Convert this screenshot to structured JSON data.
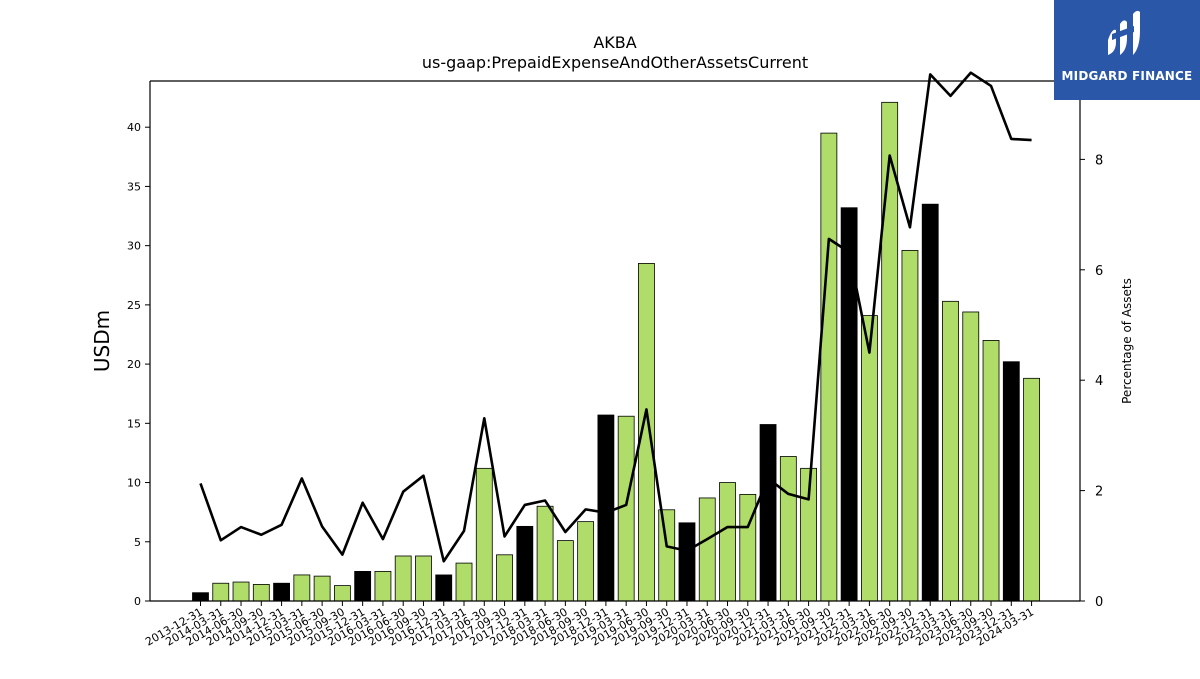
{
  "logo": {
    "text": "MIDGARD FINANCE",
    "background": "#2b57a8"
  },
  "chart_data": {
    "type": "bar",
    "title": "AKBA",
    "subtitle": "us-gaap:PrepaidExpenseAndOtherAssetsCurrent",
    "ylabel": "USDm",
    "y2label": "Percentage of Assets",
    "ylim": [
      0,
      43.9
    ],
    "y2lim": [
      0,
      9.42
    ],
    "yticks": [
      0,
      5,
      10,
      15,
      20,
      25,
      30,
      35,
      40
    ],
    "y2ticks": [
      0,
      2,
      4,
      6,
      8
    ],
    "grid": false,
    "colors": {
      "annual": "#000000",
      "quarterly": "#b0dc6a",
      "line": "#000000"
    },
    "categories": [
      "2013-12-31",
      "2014-03-31",
      "2014-06-30",
      "2014-09-30",
      "2014-12-31",
      "2015-03-31",
      "2015-06-30",
      "2015-09-30",
      "2015-12-31",
      "2016-03-31",
      "2016-06-30",
      "2016-09-30",
      "2016-12-31",
      "2017-03-31",
      "2017-06-30",
      "2017-09-30",
      "2017-12-31",
      "2018-03-31",
      "2018-06-30",
      "2018-09-30",
      "2018-12-31",
      "2019-03-31",
      "2019-06-30",
      "2019-09-30",
      "2019-12-31",
      "2020-03-31",
      "2020-06-30",
      "2020-09-30",
      "2020-12-31",
      "2021-03-31",
      "2021-06-30",
      "2021-09-30",
      "2021-12-31",
      "2022-03-31",
      "2022-06-30",
      "2022-09-30",
      "2022-12-31",
      "2023-03-31",
      "2023-06-30",
      "2023-09-30",
      "2023-12-31",
      "2024-03-31"
    ],
    "series": [
      {
        "type": "bar",
        "values": [
          0.7,
          1.5,
          1.6,
          1.4,
          1.5,
          2.2,
          2.1,
          1.3,
          2.5,
          2.5,
          3.8,
          3.8,
          2.2,
          3.2,
          11.2,
          3.9,
          6.3,
          8.0,
          5.1,
          6.7,
          15.7,
          15.6,
          28.5,
          7.7,
          6.6,
          8.7,
          10.0,
          9.0,
          14.9,
          12.2,
          11.2,
          39.5,
          33.2,
          24.1,
          42.1,
          29.6,
          33.5,
          25.3,
          24.4,
          22.0,
          20.2,
          18.8
        ],
        "annual": [
          true,
          false,
          false,
          false,
          true,
          false,
          false,
          false,
          true,
          false,
          false,
          false,
          true,
          false,
          false,
          false,
          true,
          false,
          false,
          false,
          true,
          false,
          false,
          false,
          true,
          false,
          false,
          false,
          true,
          false,
          false,
          false,
          true,
          false,
          false,
          false,
          true,
          false,
          false,
          false,
          true,
          false
        ]
      },
      {
        "type": "line",
        "axis": "right",
        "values": [
          2.13,
          1.1,
          1.34,
          1.2,
          1.38,
          2.22,
          1.35,
          0.84,
          1.78,
          1.12,
          1.98,
          2.27,
          0.72,
          1.27,
          3.31,
          1.17,
          1.74,
          1.82,
          1.25,
          1.66,
          1.6,
          1.74,
          3.47,
          0.99,
          0.91,
          1.12,
          1.34,
          1.34,
          2.22,
          1.94,
          1.84,
          6.56,
          6.32,
          4.5,
          8.07,
          6.77,
          9.54,
          9.15,
          9.57,
          9.33,
          8.37,
          8.35
        ]
      }
    ]
  }
}
